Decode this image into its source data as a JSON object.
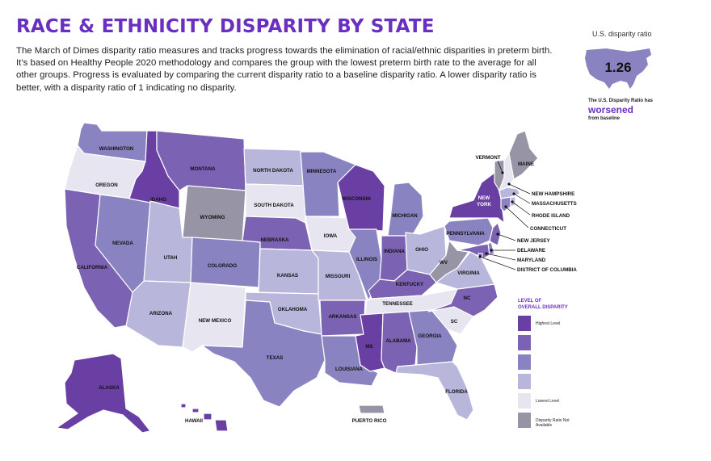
{
  "header": {
    "title": "RACE & ETHNICITY DISPARITY BY STATE",
    "description": "The March of Dimes disparity ratio measures and tracks progress towards the elimination of racial/ethnic disparities in preterm birth. It’s based on Healthy People 2020 methodology and compares the group with the lowest preterm birth rate to the average for all other groups. Progress is evaluated by comparing the current disparity ratio to a baseline disparity ratio. A lower disparity ratio is better, with a disparity ratio of 1 indicating no disparity."
  },
  "us_summary": {
    "label": "U.S. disparity ratio",
    "value": "1.26",
    "note_prefix": "The U.S. Disparity Ratio has",
    "note_status": "worsened",
    "note_suffix": "from baseline"
  },
  "colors": {
    "highest": "#6a3fa3",
    "level4": "#7b62b2",
    "level3": "#8a83c1",
    "level2": "#b9b6db",
    "lowest": "#e6e5f0",
    "not_available": "#9794a6",
    "accent": "#6a2fc1"
  },
  "legend": {
    "title_line1": "LEVEL OF",
    "title_line2": "OVERALL DISPARITY",
    "items": [
      {
        "level": 5,
        "label": "Highest Level"
      },
      {
        "level": 4,
        "label": ""
      },
      {
        "level": 3,
        "label": ""
      },
      {
        "level": 2,
        "label": ""
      },
      {
        "level": 1,
        "label": "Lowest Level"
      },
      {
        "level": 0,
        "label": "Disparity Ratio Not Available"
      }
    ]
  },
  "states": {
    "WA": {
      "label": "WASHINGTON",
      "level": 3
    },
    "OR": {
      "label": "OREGON",
      "level": 1
    },
    "CA": {
      "label": "CALIFORNIA",
      "level": 4
    },
    "NV": {
      "label": "NEVADA",
      "level": 3
    },
    "ID": {
      "label": "IDAHO",
      "level": 5
    },
    "MT": {
      "label": "MONTANA",
      "level": 4
    },
    "WY": {
      "label": "WYOMING",
      "level": 0
    },
    "UT": {
      "label": "UTAH",
      "level": 2
    },
    "AZ": {
      "label": "ARIZONA",
      "level": 2
    },
    "CO": {
      "label": "COLORADO",
      "level": 3
    },
    "NM": {
      "label": "NEW MEXICO",
      "level": 1
    },
    "ND": {
      "label": "NORTH DAKOTA",
      "level": 2
    },
    "SD": {
      "label": "SOUTH DAKOTA",
      "level": 1
    },
    "NE": {
      "label": "NEBRASKA",
      "level": 4
    },
    "KS": {
      "label": "KANSAS",
      "level": 2
    },
    "OK": {
      "label": "OKLAHOMA",
      "level": 2
    },
    "TX": {
      "label": "TEXAS",
      "level": 3
    },
    "MN": {
      "label": "MINNESOTA",
      "level": 3
    },
    "IA": {
      "label": "IOWA",
      "level": 1
    },
    "MO": {
      "label": "MISSOURI",
      "level": 2
    },
    "AR": {
      "label": "ARKANSAS",
      "level": 4
    },
    "LA": {
      "label": "LOUISIANA",
      "level": 3
    },
    "WI": {
      "label": "WISCONSIN",
      "level": 5
    },
    "IL": {
      "label": "ILLINOIS",
      "level": 3
    },
    "MI": {
      "label": "MICHIGAN",
      "level": 3
    },
    "IN": {
      "label": "INDIANA",
      "level": 4
    },
    "OH": {
      "label": "OHIO",
      "level": 2
    },
    "KY": {
      "label": "KENTUCKY",
      "level": 4
    },
    "TN": {
      "label": "TENNESSEE",
      "level": 1
    },
    "MS": {
      "label": "MS",
      "level": 5
    },
    "AL": {
      "label": "ALABAMA",
      "level": 4
    },
    "GA": {
      "label": "GEORGIA",
      "level": 3
    },
    "FL": {
      "label": "FLORIDA",
      "level": 2
    },
    "SC": {
      "label": "SC",
      "level": 1
    },
    "NC": {
      "label": "NC",
      "level": 4
    },
    "VA": {
      "label": "VIRGINIA",
      "level": 2
    },
    "WV": {
      "label": "WV",
      "level": 0
    },
    "PA": {
      "label": "PENNSYLVANIA",
      "level": 3
    },
    "NY": {
      "label": "NEW YORK",
      "level": 5
    },
    "VT": {
      "label": "VERMONT",
      "level": 0
    },
    "NH": {
      "label": "NEW HAMPSHIRE",
      "level": 1
    },
    "ME": {
      "label": "MAINE",
      "level": 0
    },
    "MA": {
      "label": "MASSACHUSETTS",
      "level": 2
    },
    "RI": {
      "label": "RHODE ISLAND",
      "level": 2
    },
    "CT": {
      "label": "CONNECTICUT",
      "level": 3
    },
    "NJ": {
      "label": "NEW JERSEY",
      "level": 4
    },
    "DE": {
      "label": "DELAWARE",
      "level": 3
    },
    "MD": {
      "label": "MARYLAND",
      "level": 4
    },
    "DC": {
      "label": "DISTRICT OF COLUMBIA",
      "level": 5
    },
    "AK": {
      "label": "ALASKA",
      "level": 5
    },
    "HI": {
      "label": "HAWAII",
      "level": 5
    },
    "PR": {
      "label": "PUERTO RICO",
      "level": 0
    }
  }
}
